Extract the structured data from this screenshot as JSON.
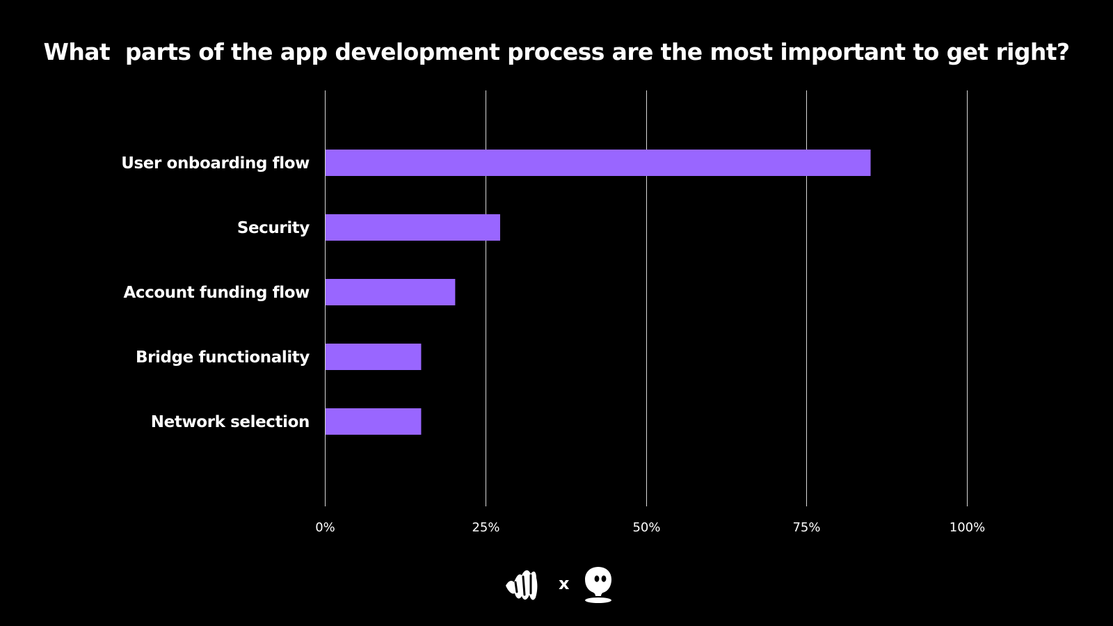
{
  "chart_data": {
    "type": "bar",
    "orientation": "horizontal",
    "title": "What  parts of the app development process are the most important to get right?",
    "categories": [
      "User onboarding flow",
      "Security",
      "Account funding flow",
      "Bridge functionality",
      "Network selection"
    ],
    "values": [
      85,
      27.3,
      20.3,
      15,
      15
    ],
    "xlim": [
      0,
      100
    ],
    "xticks": [
      0,
      25,
      50,
      75,
      100
    ],
    "xtick_labels": [
      "0%",
      "25%",
      "50%",
      "75%",
      "100%"
    ],
    "xlabel": "",
    "ylabel": "",
    "grid": true,
    "bar_color": "#9966ff",
    "background_color": "#000000",
    "text_color": "#ffffff"
  },
  "footer": {
    "separator": "x",
    "logos": [
      "wave-logo-icon",
      "ghost-logo-icon"
    ]
  }
}
